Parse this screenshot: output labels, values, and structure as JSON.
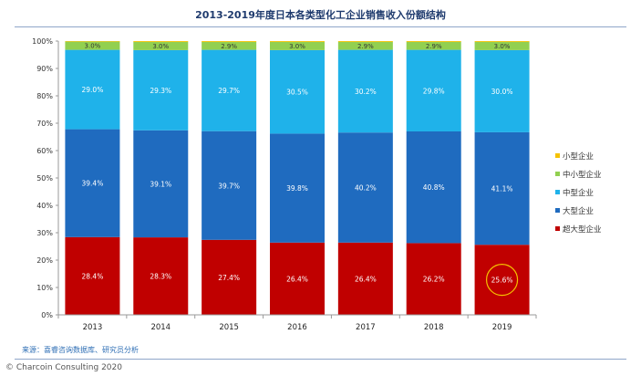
{
  "header": {
    "title": "2013-2019年度日本各类型化工企业销售收入份额结构"
  },
  "footer": {
    "source": "来源：喜睿咨询数据库、研究员分析",
    "copyright": "© Charcoin Consulting 2020"
  },
  "chart_data": {
    "type": "bar",
    "stacked": true,
    "title": "2013-2019年度日本各类型化工企业销售收入份额结构",
    "xlabel": "",
    "ylabel": "",
    "ylim": [
      0,
      100
    ],
    "y_ticks": [
      "0%",
      "10%",
      "20%",
      "30%",
      "40%",
      "50%",
      "60%",
      "70%",
      "80%",
      "90%",
      "100%"
    ],
    "categories": [
      "2013",
      "2014",
      "2015",
      "2016",
      "2017",
      "2018",
      "2019"
    ],
    "series": [
      {
        "name": "超大型企业",
        "color": "#c00000",
        "values": [
          28.4,
          28.3,
          27.4,
          26.4,
          26.4,
          26.2,
          25.6
        ],
        "labels": [
          "28.4%",
          "28.3%",
          "27.4%",
          "26.4%",
          "26.4%",
          "26.2%",
          "25.6%"
        ]
      },
      {
        "name": "大型企业",
        "color": "#1f6bbf",
        "values": [
          39.4,
          39.1,
          39.7,
          39.8,
          40.2,
          40.8,
          41.1
        ],
        "labels": [
          "39.4%",
          "39.1%",
          "39.7%",
          "39.8%",
          "40.2%",
          "40.8%",
          "41.1%"
        ]
      },
      {
        "name": "中型企业",
        "color": "#1fb2ea",
        "values": [
          29.0,
          29.3,
          29.7,
          30.5,
          30.2,
          29.8,
          30.0
        ],
        "labels": [
          "29.0%",
          "29.3%",
          "29.7%",
          "30.5%",
          "30.2%",
          "29.8%",
          "30.0%"
        ]
      },
      {
        "name": "中小型企业",
        "color": "#92d050",
        "values": [
          3.0,
          3.0,
          2.9,
          3.0,
          2.9,
          2.9,
          3.0
        ],
        "labels": [
          "3.0%",
          "3.0%",
          "2.9%",
          "3.0%",
          "2.9%",
          "2.9%",
          "3.0%"
        ]
      },
      {
        "name": "小型企业",
        "color": "#f5c200",
        "values": [
          0.2,
          0.3,
          0.3,
          0.3,
          0.3,
          0.3,
          0.3
        ],
        "labels": []
      }
    ],
    "legend_order": [
      "小型企业",
      "中小型企业",
      "中型企业",
      "大型企业",
      "超大型企业"
    ],
    "legend_position": "right",
    "highlight": {
      "category": "2019",
      "series": "超大型企业",
      "color": "#f5c200"
    },
    "grid": false
  }
}
